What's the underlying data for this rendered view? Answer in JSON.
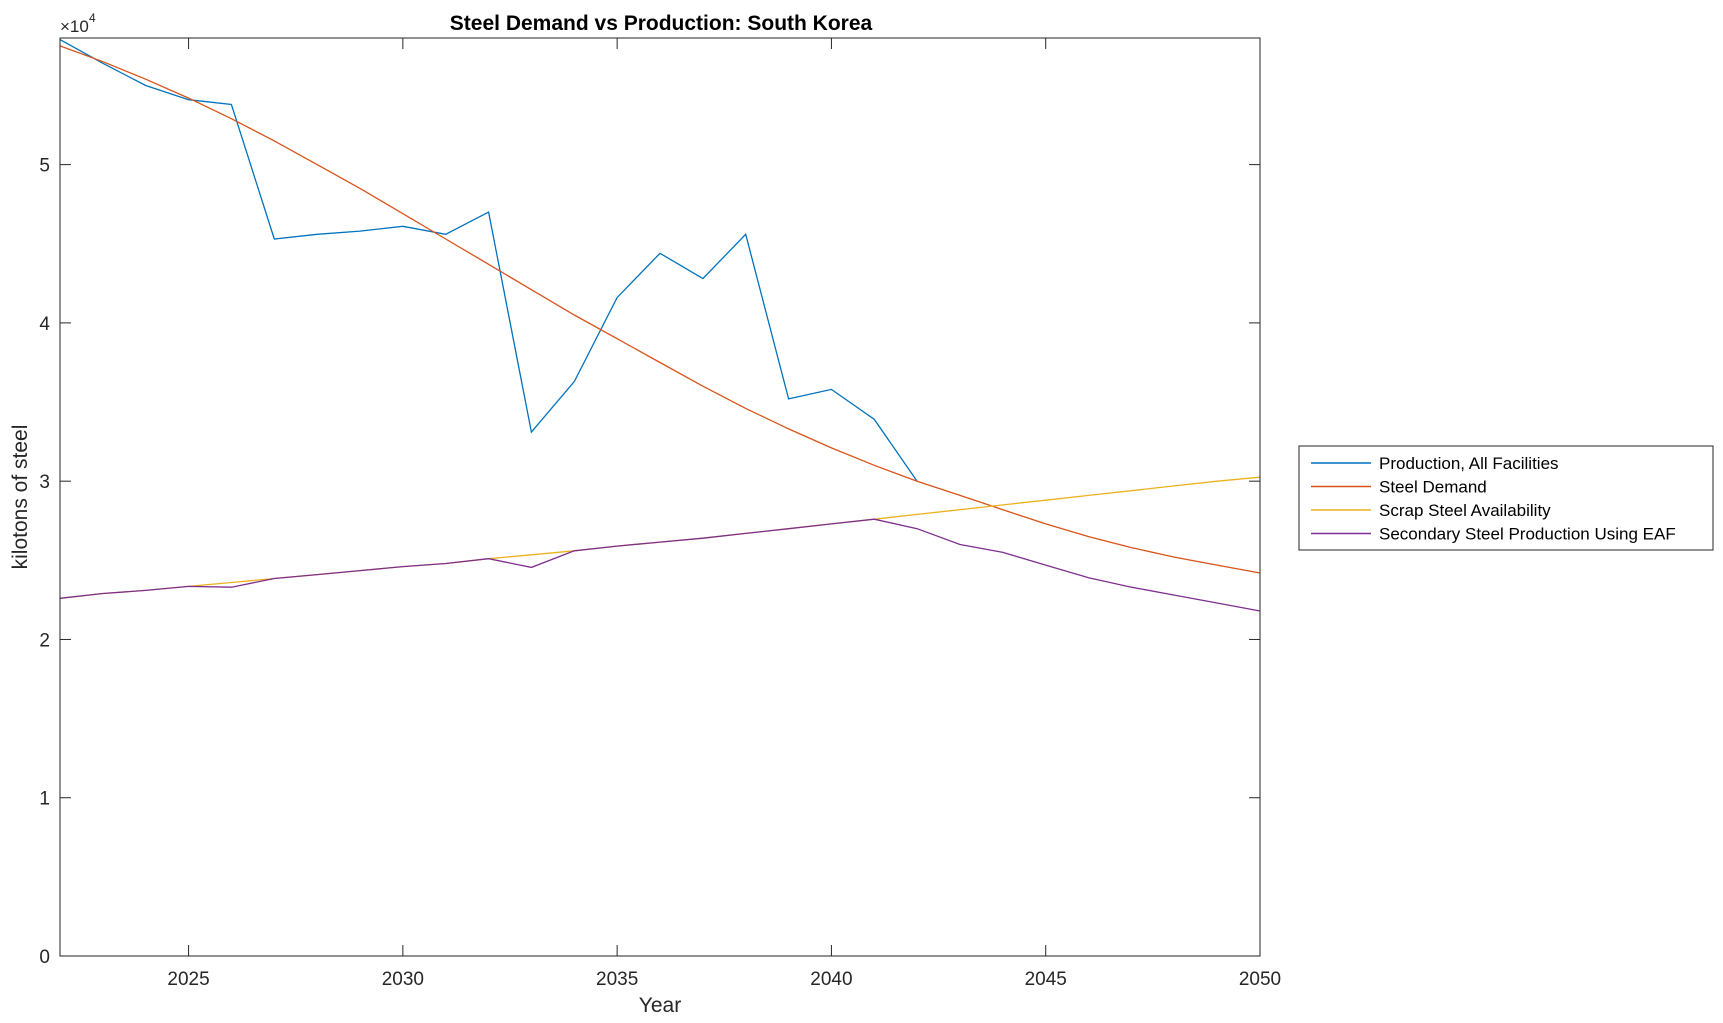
{
  "chart_data": {
    "type": "line",
    "title": "Steel Demand vs Production: South Korea",
    "xlabel": "Year",
    "ylabel": "kilotons of steel",
    "y_exponent_base": "×10",
    "y_exponent_power": "4",
    "xlim": [
      2022,
      2050
    ],
    "ylim": [
      0,
      5.8
    ],
    "xticks": [
      2025,
      2030,
      2035,
      2040,
      2045,
      2050
    ],
    "yticks": [
      0,
      1,
      2,
      3,
      4,
      5
    ],
    "grid": false,
    "legend_position": "outside-right",
    "series": [
      {
        "name": "Production, All Facilities",
        "color": "#0072BD",
        "x": [
          2022,
          2023,
          2024,
          2025,
          2026,
          2027,
          2028,
          2029,
          2030,
          2031,
          2032,
          2033,
          2034,
          2035,
          2036,
          2037,
          2038,
          2039,
          2040,
          2041,
          2042
        ],
        "y": [
          5.79,
          5.64,
          5.5,
          5.41,
          5.38,
          4.53,
          4.56,
          4.58,
          4.61,
          4.56,
          4.7,
          3.31,
          3.63,
          4.16,
          4.44,
          4.28,
          4.56,
          3.52,
          3.58,
          3.39,
          3.0
        ]
      },
      {
        "name": "Steel Demand",
        "color": "#D95319",
        "x": [
          2022,
          2023,
          2024,
          2025,
          2026,
          2027,
          2028,
          2029,
          2030,
          2031,
          2032,
          2033,
          2034,
          2035,
          2036,
          2037,
          2038,
          2039,
          2040,
          2041,
          2042,
          2043,
          2044,
          2045,
          2046,
          2047,
          2048,
          2049,
          2050
        ],
        "y": [
          5.75,
          5.65,
          5.54,
          5.42,
          5.29,
          5.15,
          5.0,
          4.85,
          4.69,
          4.53,
          4.37,
          4.21,
          4.05,
          3.9,
          3.75,
          3.6,
          3.46,
          3.33,
          3.21,
          3.1,
          3.0,
          2.91,
          2.82,
          2.73,
          2.65,
          2.58,
          2.52,
          2.47,
          2.42
        ]
      },
      {
        "name": "Scrap Steel Availability",
        "color": "#EDB120",
        "x": [
          2022,
          2023,
          2024,
          2025,
          2026,
          2027,
          2028,
          2029,
          2030,
          2031,
          2032,
          2033,
          2034,
          2035,
          2036,
          2037,
          2038,
          2039,
          2040,
          2041,
          2042,
          2043,
          2044,
          2045,
          2046,
          2047,
          2048,
          2049,
          2050
        ],
        "y": [
          2.26,
          2.29,
          2.31,
          2.335,
          2.36,
          2.385,
          2.41,
          2.435,
          2.46,
          2.48,
          2.51,
          2.535,
          2.56,
          2.59,
          2.615,
          2.64,
          2.67,
          2.7,
          2.73,
          2.76,
          2.79,
          2.82,
          2.85,
          2.88,
          2.91,
          2.94,
          2.97,
          3.0,
          3.025
        ]
      },
      {
        "name": "Secondary Steel Production Using EAF",
        "color": "#7E2F8E",
        "x": [
          2022,
          2023,
          2024,
          2025,
          2026,
          2027,
          2028,
          2029,
          2030,
          2031,
          2032,
          2033,
          2034,
          2035,
          2036,
          2037,
          2038,
          2039,
          2040,
          2041,
          2042,
          2043,
          2044,
          2045,
          2046,
          2047,
          2048,
          2049,
          2050
        ],
        "y": [
          2.26,
          2.29,
          2.31,
          2.335,
          2.33,
          2.385,
          2.41,
          2.435,
          2.46,
          2.48,
          2.51,
          2.455,
          2.56,
          2.59,
          2.615,
          2.64,
          2.67,
          2.7,
          2.73,
          2.76,
          2.7,
          2.6,
          2.55,
          2.47,
          2.39,
          2.33,
          2.28,
          2.23,
          2.18
        ]
      }
    ]
  }
}
